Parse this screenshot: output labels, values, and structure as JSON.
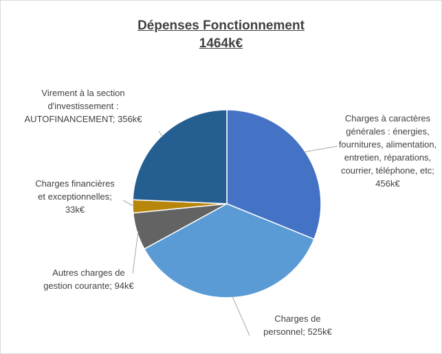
{
  "chart_data": {
    "type": "pie",
    "title": "Dépenses Fonctionnement",
    "subtitle": "1464k€",
    "values": [
      456,
      525,
      94,
      33,
      356
    ],
    "value_labels": [
      "Charges à caractères générales : énergies, fournitures, alimentation, entretien, réparations, courrier, téléphone, etc; 456k€",
      "Charges de personnel; 525k€",
      "Autres charges de gestion courante; 94k€",
      "Charges financières et exceptionnelles; 33k€",
      "Virement à la section d'investissement : AUTOFINANCEMENT; 356k€"
    ],
    "colors": [
      "#4472c4",
      "#5b9bd5",
      "#636363",
      "#b8860b",
      "#255e91"
    ]
  }
}
